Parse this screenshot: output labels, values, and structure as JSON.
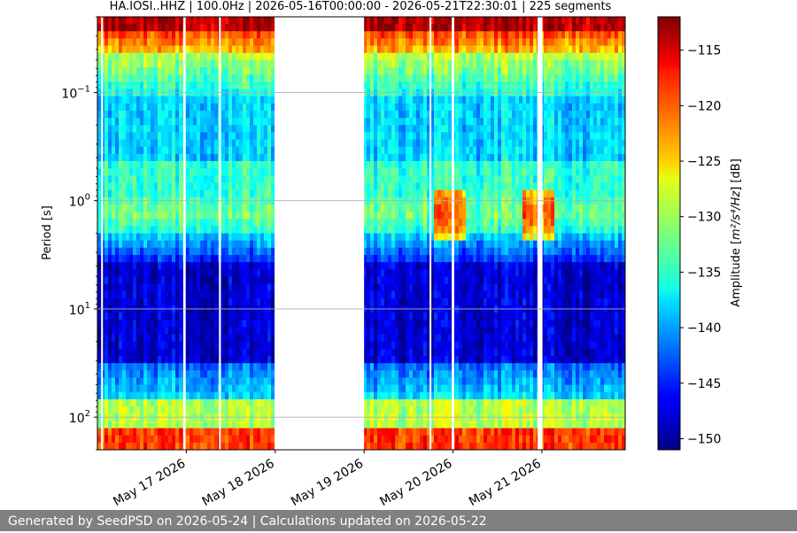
{
  "chart_data": {
    "type": "heatmap",
    "title": "HA.IOSI..HHZ | 100.0Hz | 2026-05-16T00:00:00 - 2026-05-21T22:30:01 | 225 segments",
    "xlabel": "",
    "ylabel": "Period [s]",
    "x_ticks": [
      "May 17 2026",
      "May 18 2026",
      "May 19 2026",
      "May 20 2026",
      "May 21 2026"
    ],
    "x_range": [
      "2026-05-16T00:00:00",
      "2026-05-21T22:30:01"
    ],
    "y_scale": "log",
    "y_inverted": true,
    "y_range": [
      0.02,
      200
    ],
    "y_ticks": [
      {
        "base": "10",
        "exp": "−1",
        "value": 0.1
      },
      {
        "base": "10",
        "exp": "0",
        "value": 1
      },
      {
        "base": "10",
        "exp": "1",
        "value": 10
      },
      {
        "base": "10",
        "exp": "2",
        "value": 100
      }
    ],
    "grid": true,
    "colorbar": {
      "label_prefix": "Amplitude [",
      "label_math": "m²/s⁴/Hz",
      "label_suffix": "] [dB]",
      "range": [
        -151,
        -112
      ],
      "ticks": [
        "−115",
        "−120",
        "−125",
        "−130",
        "−135",
        "−140",
        "−145",
        "−150"
      ],
      "tick_values": [
        -115,
        -120,
        -125,
        -130,
        -135,
        -140,
        -145,
        -150
      ],
      "colormap": "jet"
    },
    "data_gaps": [
      {
        "from": "2026-05-16T01:00:00",
        "to": "2026-05-16T01:30:00"
      },
      {
        "from": "2026-05-16T23:10:00",
        "to": "2026-05-16T23:50:00"
      },
      {
        "from": "2026-05-17T08:50:00",
        "to": "2026-05-17T09:20:00"
      },
      {
        "from": "2026-05-17T23:50:00",
        "to": "2026-05-19T00:00:00"
      },
      {
        "from": "2026-05-19T17:40:00",
        "to": "2026-05-19T18:10:00"
      },
      {
        "from": "2026-05-19T23:40:00",
        "to": "2026-05-20T00:20:00"
      },
      {
        "from": "2026-05-20T22:50:00",
        "to": "2026-05-21T00:10:00"
      }
    ]
  },
  "footer": "Generated by SeedPSD on 2026-05-24 | Calculations updated on 2026-05-22"
}
